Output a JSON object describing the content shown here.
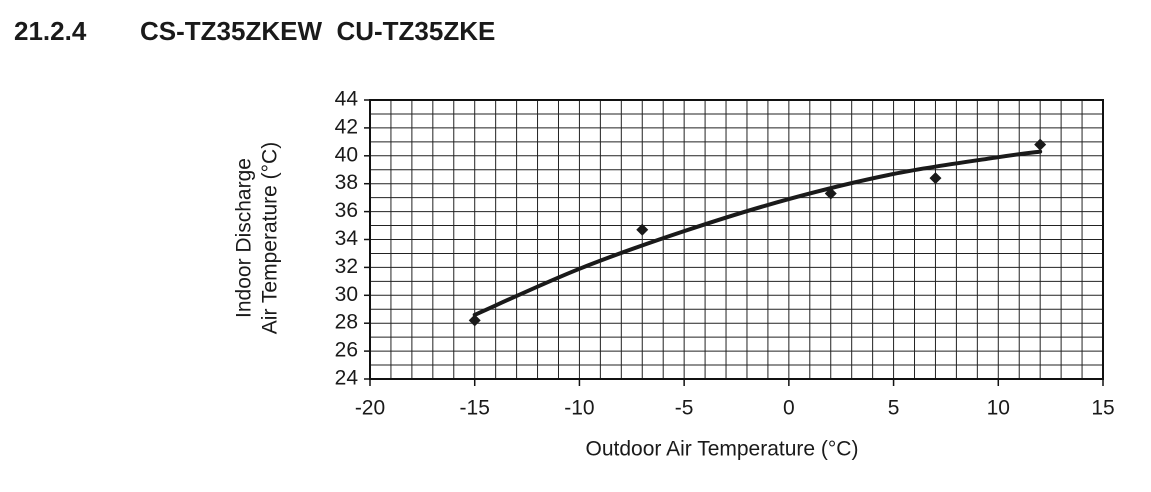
{
  "header": {
    "section": "21.2.4",
    "title": "CS-TZ35ZKEW  CU-TZ35ZKE"
  },
  "chart_data": {
    "type": "scatter",
    "xlabel": "Outdoor Air Temperature (°C)",
    "ylabel": [
      "Indoor Discharge",
      "Air Temperature (°C)"
    ],
    "xlim": [
      -20,
      15
    ],
    "ylim": [
      24,
      44
    ],
    "xticks": [
      -20,
      -15,
      -10,
      -5,
      0,
      5,
      10,
      15
    ],
    "yticks": [
      24,
      26,
      28,
      30,
      32,
      34,
      36,
      38,
      40,
      42,
      44
    ],
    "grid": true,
    "xgrid": [
      -20,
      -19,
      -18,
      -17,
      -16,
      -15,
      -14,
      -13,
      -12,
      -11,
      -10,
      -9,
      -8,
      -7,
      -6,
      -5,
      -4,
      -3,
      -2,
      -1,
      0,
      1,
      2,
      3,
      4,
      5,
      6,
      7,
      8,
      9,
      10,
      11,
      12,
      13,
      14,
      15
    ],
    "ygrid": [
      24,
      25,
      26,
      27,
      28,
      29,
      30,
      31,
      32,
      33,
      34,
      35,
      36,
      37,
      38,
      39,
      40,
      41,
      42,
      43,
      44
    ],
    "series": [
      {
        "type": "scatter",
        "marker": "diamond",
        "color": "#1a1a1a",
        "x": [
          -15,
          -7,
          2,
          7,
          12
        ],
        "values": [
          28.2,
          34.7,
          37.3,
          38.4,
          40.8
        ]
      },
      {
        "type": "line",
        "color": "#1a1a1a",
        "x": [
          -15,
          -10,
          -5,
          0,
          5,
          10,
          12
        ],
        "values": [
          28.6,
          31.9,
          34.6,
          36.9,
          38.7,
          39.9,
          40.3
        ]
      }
    ]
  }
}
